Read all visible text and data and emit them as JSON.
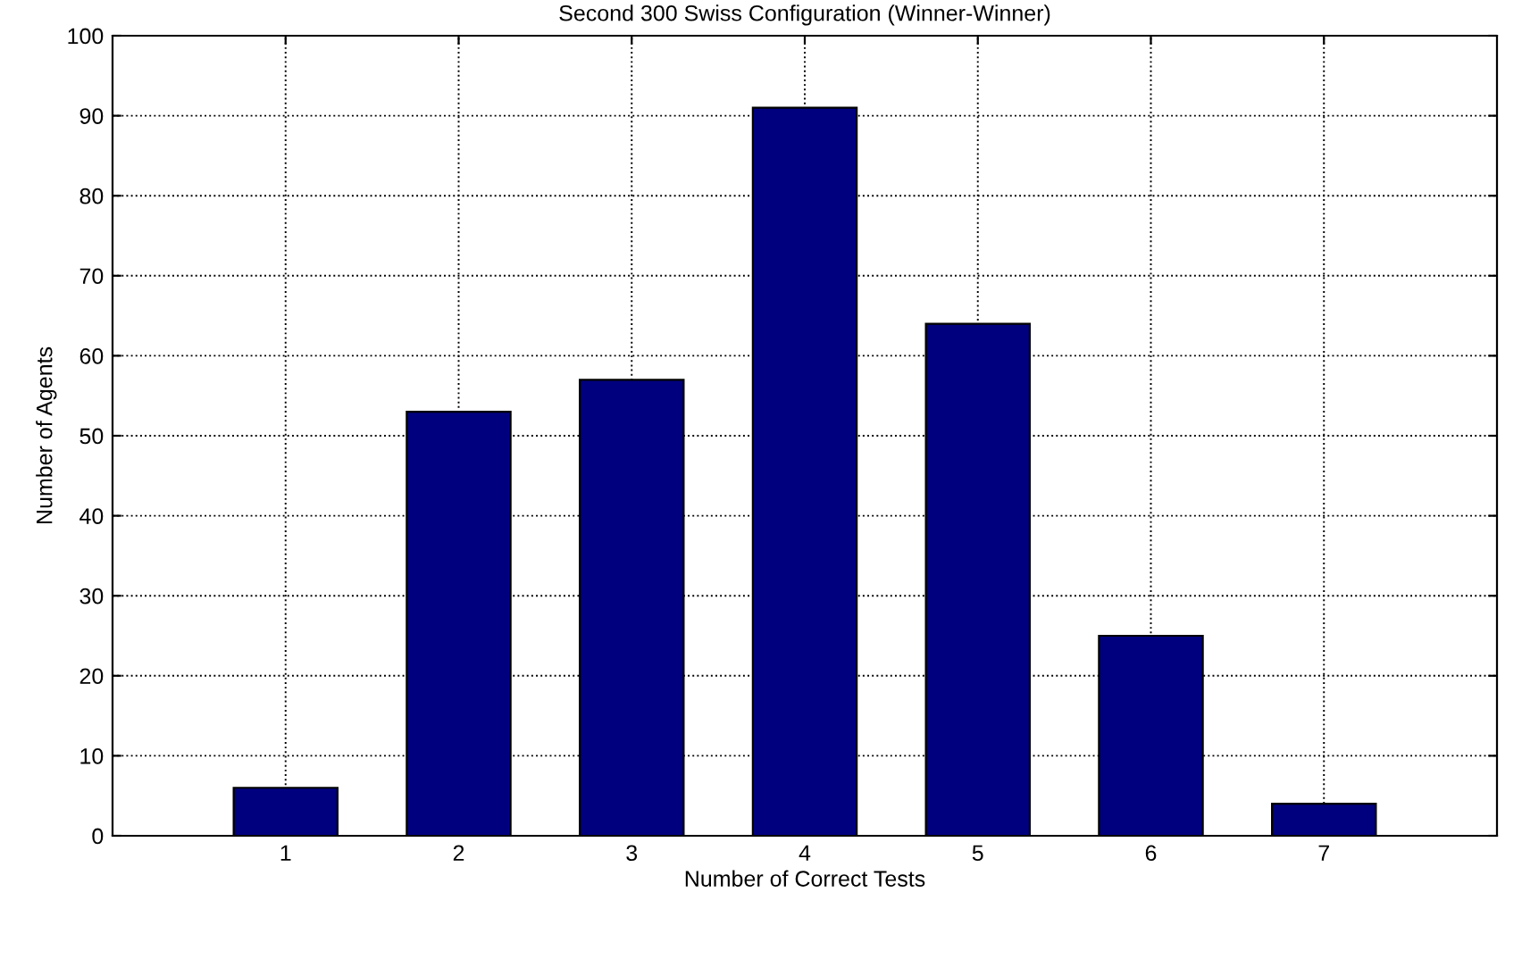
{
  "chart_data": {
    "type": "bar",
    "title": "Second 300 Swiss Configuration (Winner-Winner)",
    "xlabel": "Number of Correct Tests",
    "ylabel": "Number of Agents",
    "x": [
      1,
      2,
      3,
      4,
      5,
      6,
      7
    ],
    "values": [
      6,
      53,
      57,
      91,
      64,
      25,
      4
    ],
    "color": "#00007f",
    "xlim": [
      0,
      8
    ],
    "xticks": [
      1,
      2,
      3,
      4,
      5,
      6,
      7
    ],
    "ylim": [
      0,
      100
    ],
    "yticks": [
      0,
      10,
      20,
      30,
      40,
      50,
      60,
      70,
      80,
      90,
      100
    ],
    "grid": true,
    "line_style": "dotted"
  }
}
